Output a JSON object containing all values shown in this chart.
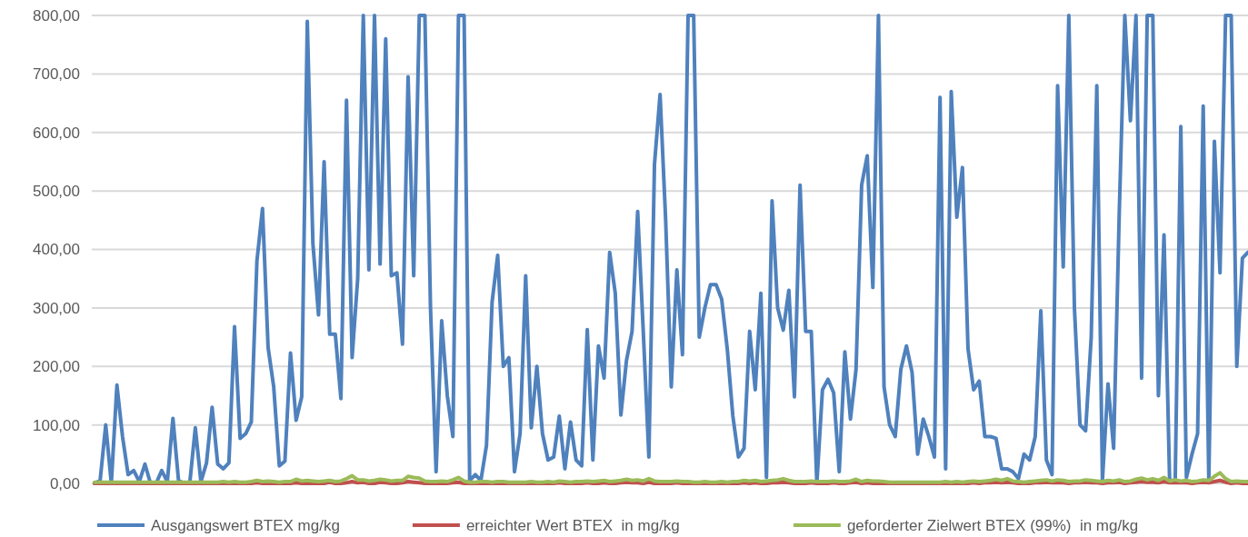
{
  "chart_data": {
    "type": "line",
    "categories": [
      null,
      null,
      null,
      null,
      null,
      null,
      null,
      null,
      null,
      null,
      null,
      null,
      null,
      null,
      null,
      null,
      null,
      null,
      null,
      null,
      null,
      null,
      null,
      null,
      null,
      null,
      null,
      null,
      null,
      null,
      null,
      null,
      null,
      null,
      null,
      null,
      null,
      null,
      null,
      null,
      null,
      null,
      null,
      null,
      null,
      null,
      null,
      null,
      null,
      null,
      null,
      null,
      null,
      null,
      null,
      null,
      null,
      null,
      null,
      null,
      null,
      null,
      null,
      null,
      null,
      null,
      null,
      null,
      null,
      null,
      null,
      null,
      null,
      null,
      null,
      null,
      null,
      null,
      null,
      null,
      null,
      null,
      null,
      null,
      null,
      null,
      null,
      null,
      null,
      null,
      null,
      null,
      null,
      null,
      null,
      null,
      null,
      null,
      null,
      null,
      null,
      null,
      null,
      null,
      null,
      null,
      null,
      null,
      null,
      null,
      null,
      null,
      null,
      null,
      null,
      null,
      null,
      null,
      null,
      null,
      null,
      null,
      null,
      null,
      null,
      null,
      null,
      null,
      null,
      null,
      null,
      null,
      null,
      null,
      null,
      null,
      null,
      null,
      null,
      null,
      null,
      null,
      null,
      null,
      null,
      null,
      null,
      null,
      null,
      null,
      null,
      null,
      null,
      null,
      null,
      null,
      null,
      null,
      null,
      null,
      null,
      null,
      null,
      null,
      null,
      null,
      null,
      null,
      null,
      null,
      null,
      null,
      null,
      null,
      null,
      null,
      null,
      null,
      null,
      null,
      null,
      null,
      null,
      null,
      null,
      null,
      null,
      null,
      null,
      null,
      null,
      null,
      null,
      null,
      null,
      null,
      null,
      null,
      null,
      null,
      null,
      null,
      null,
      null,
      null,
      null,
      null
    ],
    "series": [
      {
        "name": "Ausgangswert BTEX mg/kg",
        "color": "#4f81bd",
        "values": [
          0,
          5,
          100,
          0,
          168,
          80,
          15,
          22,
          3,
          33,
          0,
          0,
          22,
          3,
          111,
          5,
          0,
          0,
          95,
          3,
          35,
          130,
          33,
          25,
          35,
          268,
          77,
          85,
          105,
          380,
          470,
          232,
          165,
          30,
          38,
          223,
          108,
          148,
          790,
          410,
          288,
          550,
          255,
          255,
          145,
          655,
          215,
          350,
          800,
          365,
          800,
          375,
          760,
          355,
          360,
          238,
          695,
          355,
          800,
          800,
          300,
          20,
          278,
          150,
          80,
          800,
          800,
          5,
          15,
          5,
          65,
          310,
          390,
          200,
          215,
          20,
          85,
          355,
          95,
          200,
          85,
          40,
          45,
          115,
          25,
          105,
          40,
          30,
          263,
          40,
          235,
          180,
          395,
          325,
          117,
          210,
          260,
          465,
          260,
          45,
          545,
          665,
          450,
          165,
          365,
          220,
          800,
          800,
          250,
          300,
          340,
          340,
          315,
          230,
          115,
          45,
          60,
          260,
          160,
          325,
          10,
          483,
          300,
          262,
          330,
          148,
          510,
          260,
          260,
          0,
          160,
          178,
          155,
          20,
          225,
          110,
          195,
          510,
          560,
          335,
          800,
          165,
          100,
          80,
          195,
          235,
          190,
          50,
          110,
          80,
          45,
          660,
          25,
          670,
          455,
          540,
          230,
          160,
          175,
          80,
          80,
          77,
          25,
          25,
          20,
          8,
          50,
          40,
          80,
          295,
          40,
          15,
          680,
          370,
          800,
          300,
          100,
          90,
          250,
          680,
          5,
          170,
          60,
          460,
          800,
          620,
          800,
          180,
          800,
          800,
          150,
          425,
          5,
          5,
          610,
          10,
          50,
          85,
          645,
          5,
          585,
          360,
          800,
          800,
          200,
          385,
          395
        ]
      },
      {
        "name": "erreichter Wert BTEX  in mg/kg",
        "color": "#c0504d",
        "values": [
          0,
          0,
          0,
          0,
          0,
          0,
          0,
          0,
          0,
          0,
          0,
          0,
          0,
          0,
          0,
          0,
          0,
          0,
          0,
          0,
          0,
          0,
          0,
          0,
          0,
          0,
          0,
          0,
          0,
          1,
          0,
          0,
          0,
          0,
          0,
          0,
          1,
          0,
          0,
          0,
          0,
          0,
          2,
          0,
          0,
          1,
          3,
          1,
          2,
          0,
          0,
          2,
          1,
          0,
          0,
          1,
          3,
          2,
          1,
          0,
          0,
          0,
          0,
          0,
          1,
          2,
          0,
          0,
          0,
          0,
          0,
          0,
          0,
          0,
          0,
          0,
          0,
          0,
          0,
          0,
          0,
          0,
          0,
          1,
          0,
          0,
          0,
          0,
          1,
          0,
          0,
          1,
          0,
          0,
          1,
          2,
          1,
          1,
          0,
          2,
          0,
          0,
          0,
          0,
          1,
          0,
          0,
          0,
          0,
          0,
          0,
          0,
          0,
          0,
          0,
          0,
          1,
          0,
          1,
          0,
          0,
          1,
          1,
          2,
          1,
          0,
          0,
          0,
          1,
          0,
          0,
          0,
          1,
          0,
          0,
          1,
          2,
          0,
          1,
          0,
          0,
          0,
          0,
          0,
          0,
          0,
          0,
          0,
          0,
          0,
          0,
          0,
          0,
          0,
          0,
          0,
          0,
          1,
          0,
          1,
          1,
          2,
          1,
          2,
          1,
          0,
          0,
          0,
          1,
          1,
          2,
          1,
          1,
          1,
          0,
          1,
          1,
          2,
          1,
          1,
          0,
          1,
          1,
          2,
          0,
          1,
          2,
          3,
          2,
          2,
          1,
          3,
          1,
          1,
          1,
          1,
          0,
          1,
          2,
          1,
          3,
          5,
          2,
          0,
          1,
          0,
          0
        ]
      },
      {
        "name": "geforderter Zielwert BTEX (99%)  in mg/kg",
        "color": "#9bbb59",
        "values": [
          2,
          2,
          2,
          2,
          2,
          2,
          2,
          2,
          2,
          2,
          2,
          2,
          2,
          2,
          2,
          2,
          2,
          2,
          2,
          2,
          2,
          2,
          2,
          3,
          2,
          3,
          2,
          2,
          3,
          5,
          3,
          4,
          3,
          2,
          3,
          3,
          7,
          4,
          5,
          4,
          3,
          4,
          5,
          3,
          4,
          8,
          13,
          6,
          6,
          4,
          5,
          7,
          6,
          4,
          5,
          5,
          12,
          10,
          9,
          4,
          3,
          3,
          4,
          3,
          6,
          10,
          4,
          2,
          2,
          3,
          3,
          2,
          3,
          3,
          2,
          2,
          2,
          2,
          3,
          2,
          2,
          3,
          2,
          4,
          3,
          2,
          3,
          3,
          4,
          3,
          4,
          5,
          3,
          4,
          5,
          7,
          5,
          6,
          4,
          8,
          4,
          3,
          3,
          3,
          4,
          3,
          3,
          2,
          2,
          3,
          2,
          2,
          3,
          2,
          3,
          3,
          5,
          4,
          5,
          3,
          4,
          5,
          6,
          8,
          5,
          3,
          3,
          3,
          4,
          3,
          3,
          3,
          4,
          3,
          3,
          4,
          7,
          3,
          5,
          4,
          4,
          3,
          2,
          2,
          2,
          2,
          2,
          2,
          2,
          2,
          2,
          2,
          3,
          2,
          3,
          2,
          3,
          4,
          3,
          4,
          5,
          7,
          5,
          8,
          4,
          3,
          2,
          3,
          4,
          5,
          6,
          4,
          6,
          5,
          3,
          4,
          4,
          6,
          5,
          4,
          3,
          5,
          4,
          6,
          3,
          4,
          7,
          9,
          6,
          8,
          5,
          10,
          4,
          6,
          4,
          5,
          3,
          4,
          6,
          5,
          12,
          18,
          8,
          3,
          4,
          3,
          3
        ]
      }
    ],
    "ylim": [
      0,
      800
    ],
    "yticks": [
      {
        "value": 0,
        "label": "0,00"
      },
      {
        "value": 100,
        "label": "100,00"
      },
      {
        "value": 200,
        "label": "200,00"
      },
      {
        "value": 300,
        "label": "300,00"
      },
      {
        "value": 400,
        "label": "400,00"
      },
      {
        "value": 500,
        "label": "500,00"
      },
      {
        "value": 600,
        "label": "600,00"
      },
      {
        "value": 700,
        "label": "700,00"
      },
      {
        "value": 800,
        "label": "800,00"
      }
    ],
    "grid": "y",
    "legend": "bottom",
    "tick_labels": "y",
    "marker": "none",
    "line_style": "solid"
  }
}
